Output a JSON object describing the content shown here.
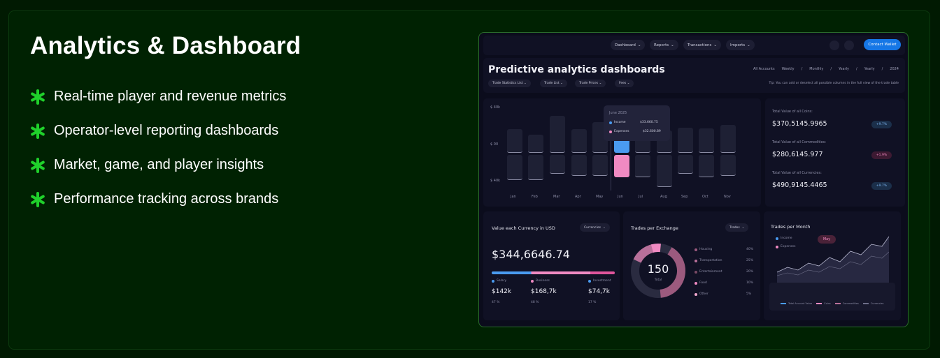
{
  "heading": "Analytics & Dashboard",
  "accent_color": "#1fd12b",
  "features": [
    "Real-time player and revenue metrics",
    "Operator-level reporting dashboards",
    "Market, game, and player insights",
    "Performance tracking across brands"
  ],
  "dashboard": {
    "nav": [
      "Dashboard",
      "Reports",
      "Transactions",
      "Imports"
    ],
    "contact_button": "Contact Wallet",
    "title": "Predictive analytics dashboards",
    "periods": [
      "All Accounts",
      "Weekly",
      "/",
      "Monthly",
      "/",
      "Yearly",
      "/",
      "Yearly",
      "/",
      "2024"
    ],
    "filters": [
      "Trade Statistics List",
      "Trade List",
      "Trade Prices",
      "Fees"
    ],
    "tip": "Tip: You can add or deselect all possible columns in the full view of the trade table",
    "bar_chart": {
      "y_labels": [
        "$ 40k",
        "$ 00",
        "$ 40k"
      ],
      "months": [
        "Jan",
        "Feb",
        "Mar",
        "Apr",
        "May",
        "Jun",
        "Jul",
        "Aug",
        "Sep",
        "Oct",
        "Nov"
      ],
      "tooltip": {
        "title": "June 2025",
        "rows": [
          {
            "label": "Income",
            "value": "$33.660.75"
          },
          {
            "label": "Expenses",
            "value": "$32.600.89"
          }
        ]
      }
    },
    "stats": [
      {
        "label": "Total Value of all Coins:",
        "value": "$370,5145.9965",
        "change": "+9.7%"
      },
      {
        "label": "Total Value of all Commodities:",
        "value": "$280,6145.977",
        "change": "+1.9%"
      },
      {
        "label": "Total Value of all Currencies:",
        "value": "$490,9145.4465",
        "change": "+9.7%"
      }
    ],
    "currency_panel": {
      "title": "Value each Currency in USD",
      "dropdown": "Currencies",
      "total": "$344,6646.74",
      "items": [
        {
          "label": "Salary",
          "amount": "$142k",
          "pct": "47 %"
        },
        {
          "label": "Business",
          "amount": "$168,7k",
          "pct": "48 %"
        },
        {
          "label": "Investment",
          "amount": "$74,7k",
          "pct": "17 %"
        }
      ]
    },
    "exchange_panel": {
      "title": "Trades per Exchange",
      "dropdown": "Trades",
      "center_value": "150",
      "center_label": "Total",
      "items": [
        {
          "label": "Housing",
          "pct": "40%"
        },
        {
          "label": "Transportation",
          "pct": "25%"
        },
        {
          "label": "Entertainment",
          "pct": "20%"
        },
        {
          "label": "Food",
          "pct": "10%"
        },
        {
          "label": "Other",
          "pct": "5%"
        }
      ]
    },
    "month_panel": {
      "title": "Trades per Month",
      "legend": [
        "Income",
        "Expenses"
      ],
      "marker": "May",
      "bottom_legend": [
        "Total Account Value",
        "Coins",
        "Commodities",
        "Currencies"
      ]
    }
  }
}
